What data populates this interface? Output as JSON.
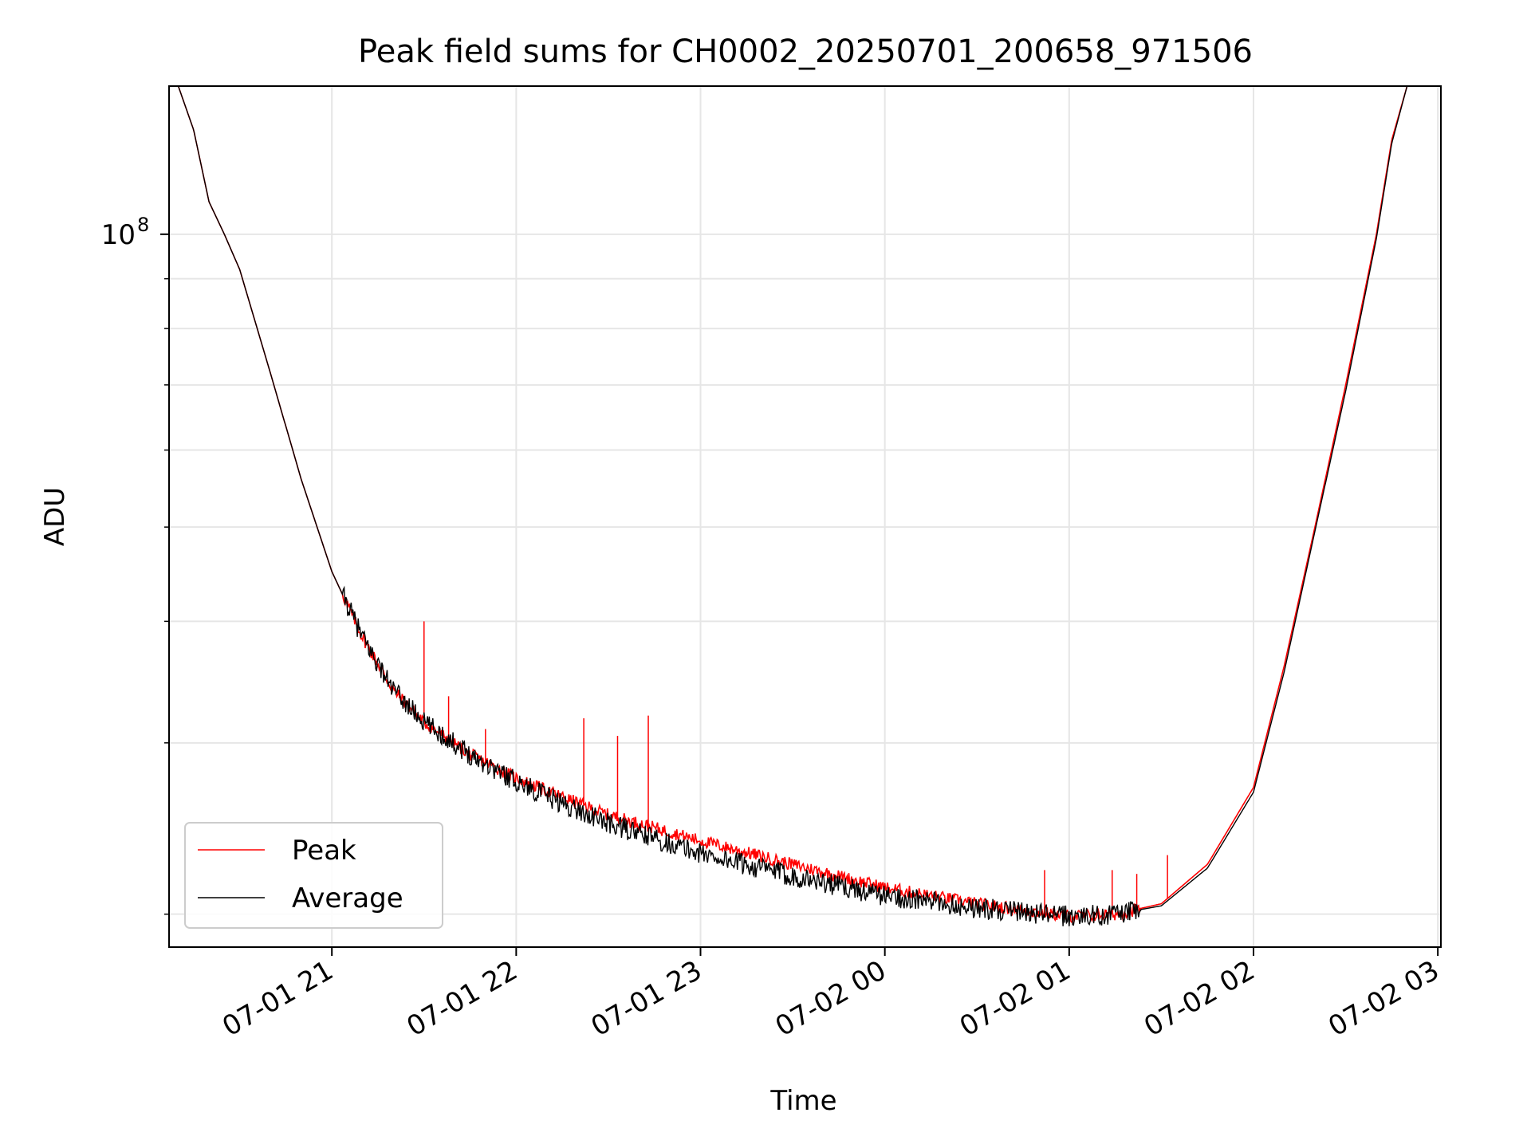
{
  "chart_data": {
    "type": "line",
    "title": "Peak field sums for CH0002_20250701_200658_971506",
    "xlabel": "Time",
    "ylabel": "ADU",
    "yscale": "log",
    "ylim": [
      18500000,
      142000000
    ],
    "xlim": [
      "2025-07-01 20:07",
      "2025-07-02 03:01"
    ],
    "x_tick_labels": [
      "07-01 21",
      "07-01 22",
      "07-01 23",
      "07-02 00",
      "07-02 01",
      "07-02 02",
      "07-02 03"
    ],
    "x_ticks": [
      "2025-07-01 21:00",
      "2025-07-01 22:00",
      "2025-07-01 23:00",
      "2025-07-02 00:00",
      "2025-07-02 01:00",
      "2025-07-02 02:00",
      "2025-07-02 03:00"
    ],
    "y_tick_labels": [
      {
        "base": "10",
        "exp": "8"
      }
    ],
    "y_ticks": [
      100000000
    ],
    "y_minor_ticks": [
      20000000,
      30000000,
      40000000,
      50000000,
      60000000,
      70000000,
      80000000,
      90000000,
      200000000
    ],
    "grid": true,
    "legend_position": "lower-left",
    "series": [
      {
        "name": "Peak",
        "color": "#ff0000",
        "x": [
          "2025-07-01 20:10",
          "2025-07-01 20:15",
          "2025-07-01 20:20",
          "2025-07-01 20:25",
          "2025-07-01 20:30",
          "2025-07-01 20:40",
          "2025-07-01 20:50",
          "2025-07-01 21:00",
          "2025-07-01 21:10",
          "2025-07-01 21:20",
          "2025-07-01 21:30",
          "2025-07-01 21:45",
          "2025-07-01 22:00",
          "2025-07-01 22:15",
          "2025-07-01 22:30",
          "2025-07-01 23:00",
          "2025-07-01 23:30",
          "2025-07-02 00:00",
          "2025-07-02 00:30",
          "2025-07-02 01:00",
          "2025-07-02 01:15",
          "2025-07-02 01:30",
          "2025-07-02 01:45",
          "2025-07-02 02:00",
          "2025-07-02 02:10",
          "2025-07-02 02:20",
          "2025-07-02 02:30",
          "2025-07-02 02:40",
          "2025-07-02 02:45",
          "2025-07-02 02:50"
        ],
        "y": [
          142000000,
          128000000,
          108000000,
          100000000,
          92000000,
          72000000,
          56000000,
          45000000,
          38500000,
          34000000,
          31500000,
          29200000,
          27600000,
          26400000,
          25300000,
          23800000,
          22500000,
          21300000,
          20500000,
          19900000,
          20000000,
          20500000,
          22500000,
          27000000,
          36000000,
          50000000,
          70000000,
          100000000,
          125000000,
          142000000
        ],
        "spikes": [
          {
            "x": "2025-07-01 21:30",
            "y": 40000000
          },
          {
            "x": "2025-07-01 21:38",
            "y": 33500000
          },
          {
            "x": "2025-07-01 21:50",
            "y": 31000000
          },
          {
            "x": "2025-07-01 22:22",
            "y": 31800000
          },
          {
            "x": "2025-07-01 22:33",
            "y": 30500000
          },
          {
            "x": "2025-07-01 22:43",
            "y": 32000000
          },
          {
            "x": "2025-07-02 00:52",
            "y": 22200000
          },
          {
            "x": "2025-07-02 01:14",
            "y": 22200000
          },
          {
            "x": "2025-07-02 01:22",
            "y": 22000000
          },
          {
            "x": "2025-07-02 01:32",
            "y": 23000000
          }
        ]
      },
      {
        "name": "Average",
        "color": "#000000",
        "x": [
          "2025-07-01 20:10",
          "2025-07-01 20:15",
          "2025-07-01 20:20",
          "2025-07-01 20:25",
          "2025-07-01 20:30",
          "2025-07-01 20:40",
          "2025-07-01 20:50",
          "2025-07-01 21:00",
          "2025-07-01 21:10",
          "2025-07-01 21:20",
          "2025-07-01 21:30",
          "2025-07-01 21:45",
          "2025-07-01 22:00",
          "2025-07-01 22:15",
          "2025-07-01 22:30",
          "2025-07-01 23:00",
          "2025-07-01 23:30",
          "2025-07-02 00:00",
          "2025-07-02 00:30",
          "2025-07-02 01:00",
          "2025-07-02 01:15",
          "2025-07-02 01:30",
          "2025-07-02 01:45",
          "2025-07-02 02:00",
          "2025-07-02 02:10",
          "2025-07-02 02:20",
          "2025-07-02 02:30",
          "2025-07-02 02:40",
          "2025-07-02 02:45",
          "2025-07-02 02:50"
        ],
        "y": [
          142000000,
          128000000,
          108000000,
          100000000,
          92000000,
          72000000,
          56000000,
          45000000,
          38500000,
          34000000,
          31500000,
          29200000,
          27400000,
          26000000,
          24800000,
          23100000,
          21900000,
          20900000,
          20300000,
          19900000,
          20000000,
          20400000,
          22300000,
          26700000,
          35500000,
          49500000,
          69000000,
          99000000,
          124000000,
          142000000
        ]
      }
    ]
  }
}
